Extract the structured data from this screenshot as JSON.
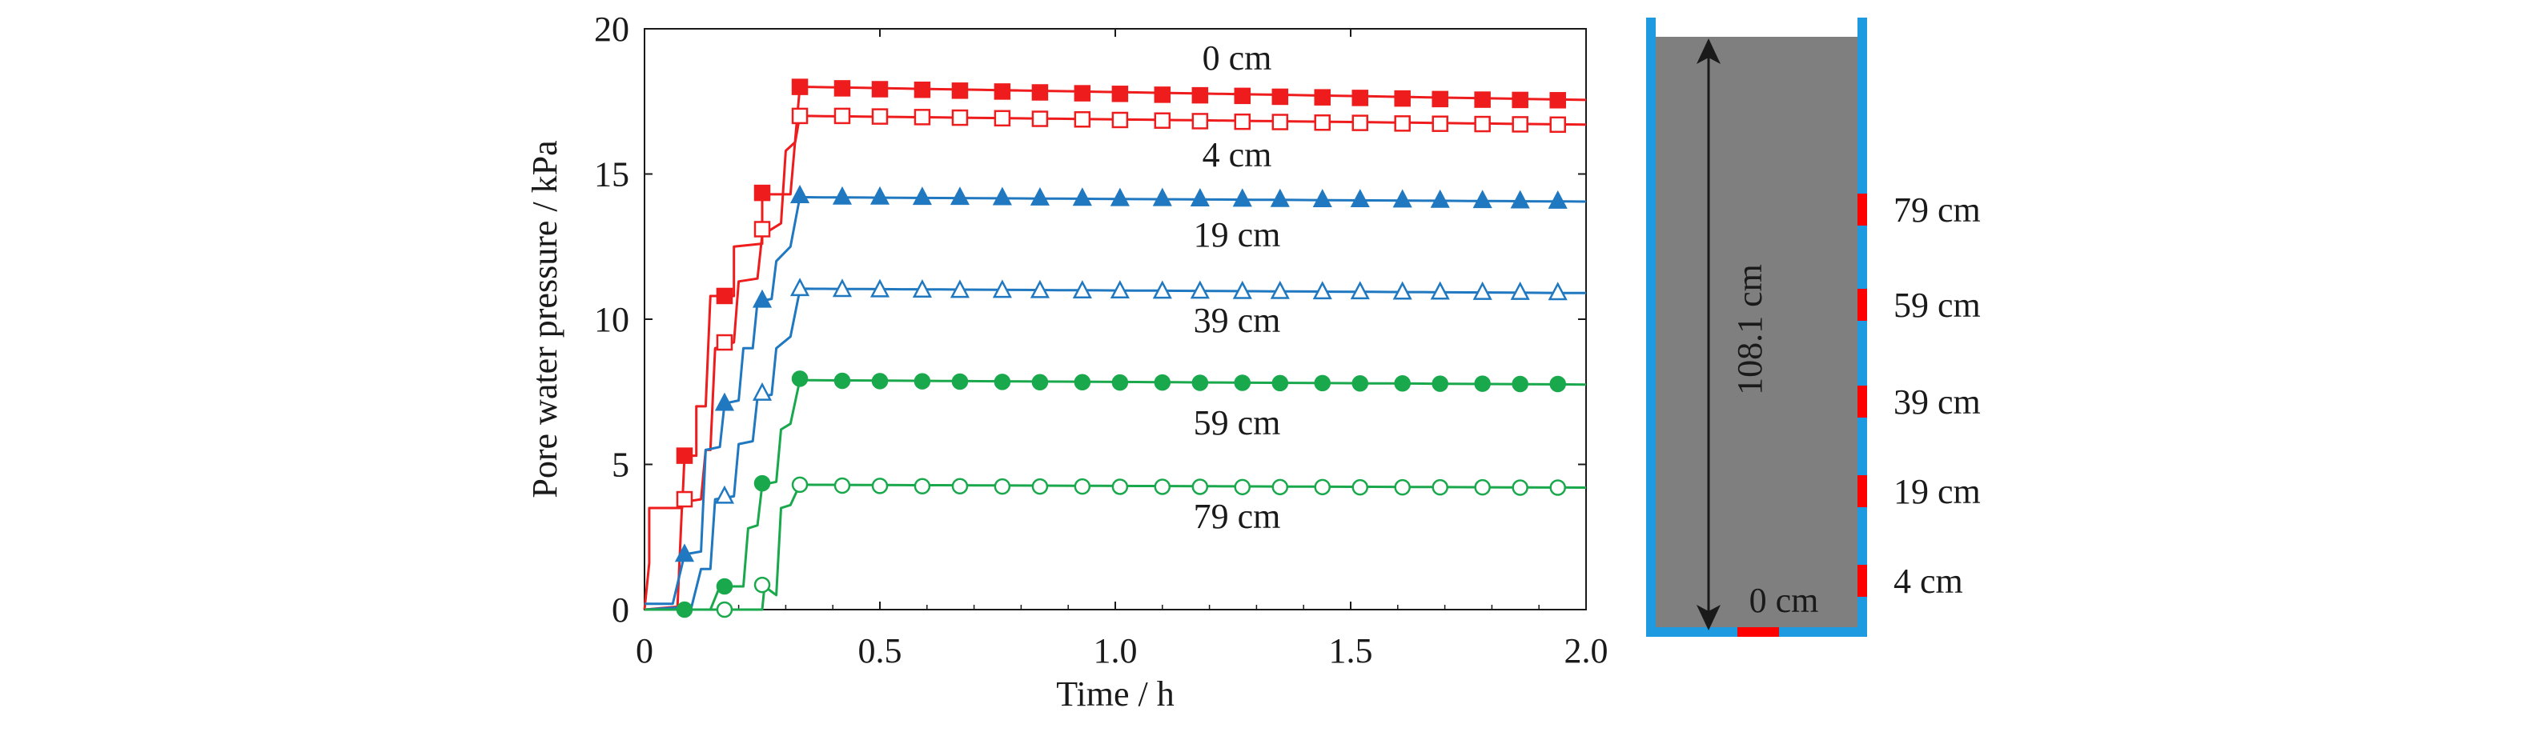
{
  "chart_data": {
    "type": "line",
    "xlabel": "Time / h",
    "ylabel": "Pore water pressure / kPa",
    "xlim": [
      0,
      2.0
    ],
    "ylim": [
      0,
      20
    ],
    "xticks": [
      "0",
      "0.5",
      "1.0",
      "1.5",
      "2.0"
    ],
    "yticks": [
      "0",
      "5",
      "10",
      "15",
      "20"
    ],
    "grid": false,
    "legend": "none (series labeled inline by depth)",
    "series": [
      {
        "name": "0 cm",
        "color": "#ee1c1c",
        "marker": "square-filled",
        "ramp": [
          [
            0,
            0
          ],
          [
            0.01,
            1.6
          ],
          [
            0.01,
            3.5
          ],
          [
            0.08,
            3.5
          ],
          [
            0.085,
            5.3
          ],
          [
            0.11,
            5.3
          ],
          [
            0.11,
            7.0
          ],
          [
            0.13,
            7.0
          ],
          [
            0.14,
            10.8
          ],
          [
            0.19,
            10.8
          ],
          [
            0.19,
            12.5
          ],
          [
            0.25,
            12.6
          ],
          [
            0.25,
            14.3
          ],
          [
            0.31,
            14.3
          ],
          [
            0.33,
            18.0
          ]
        ],
        "plateau": {
          "start": 0.34,
          "end": 2.0,
          "from": 18.0,
          "to": 17.55
        },
        "markers": [
          [
            0.085,
            5.3
          ],
          [
            0.17,
            10.8
          ],
          [
            0.25,
            14.35
          ],
          [
            0.33,
            18.0
          ],
          [
            0.42,
            17.95
          ],
          [
            0.5,
            17.92
          ],
          [
            0.59,
            17.9
          ],
          [
            0.67,
            17.87
          ],
          [
            0.76,
            17.84
          ],
          [
            0.84,
            17.81
          ],
          [
            0.93,
            17.78
          ],
          [
            1.01,
            17.76
          ],
          [
            1.1,
            17.73
          ],
          [
            1.18,
            17.71
          ],
          [
            1.27,
            17.69
          ],
          [
            1.35,
            17.66
          ],
          [
            1.44,
            17.64
          ],
          [
            1.52,
            17.62
          ],
          [
            1.61,
            17.6
          ],
          [
            1.69,
            17.58
          ],
          [
            1.78,
            17.56
          ],
          [
            1.86,
            17.55
          ],
          [
            1.94,
            17.54
          ]
        ]
      },
      {
        "name": "4 cm",
        "color": "#ee1c1c",
        "marker": "square-open",
        "ramp": [
          [
            0,
            0
          ],
          [
            0.07,
            0.1
          ],
          [
            0.08,
            3.7
          ],
          [
            0.12,
            3.8
          ],
          [
            0.13,
            5.5
          ],
          [
            0.14,
            5.5
          ],
          [
            0.15,
            9.0
          ],
          [
            0.19,
            9.2
          ],
          [
            0.2,
            11.3
          ],
          [
            0.24,
            11.4
          ],
          [
            0.25,
            12.9
          ],
          [
            0.29,
            13.3
          ],
          [
            0.3,
            15.8
          ],
          [
            0.32,
            16.1
          ],
          [
            0.33,
            17.0
          ]
        ],
        "plateau": {
          "start": 0.34,
          "end": 2.0,
          "from": 17.0,
          "to": 16.7
        },
        "markers": [
          [
            0.085,
            3.8
          ],
          [
            0.17,
            9.2
          ],
          [
            0.25,
            13.1
          ],
          [
            0.33,
            17.0
          ],
          [
            0.42,
            17.0
          ],
          [
            0.5,
            16.98
          ],
          [
            0.59,
            16.96
          ],
          [
            0.67,
            16.94
          ],
          [
            0.76,
            16.92
          ],
          [
            0.84,
            16.9
          ],
          [
            0.93,
            16.88
          ],
          [
            1.01,
            16.86
          ],
          [
            1.1,
            16.84
          ],
          [
            1.18,
            16.82
          ],
          [
            1.27,
            16.8
          ],
          [
            1.35,
            16.79
          ],
          [
            1.44,
            16.77
          ],
          [
            1.52,
            16.76
          ],
          [
            1.61,
            16.74
          ],
          [
            1.69,
            16.73
          ],
          [
            1.78,
            16.72
          ],
          [
            1.86,
            16.71
          ],
          [
            1.94,
            16.7
          ]
        ]
      },
      {
        "name": "19 cm",
        "color": "#1f78c0",
        "marker": "triangle-filled",
        "ramp": [
          [
            0,
            0.2
          ],
          [
            0.06,
            0.2
          ],
          [
            0.085,
            1.9
          ],
          [
            0.12,
            2.0
          ],
          [
            0.13,
            5.5
          ],
          [
            0.16,
            5.6
          ],
          [
            0.17,
            7.1
          ],
          [
            0.2,
            7.2
          ],
          [
            0.21,
            9.0
          ],
          [
            0.23,
            9.0
          ],
          [
            0.24,
            10.6
          ],
          [
            0.27,
            10.7
          ],
          [
            0.28,
            12.0
          ],
          [
            0.31,
            12.5
          ],
          [
            0.33,
            14.2
          ]
        ],
        "plateau": {
          "start": 0.34,
          "end": 2.0,
          "from": 14.2,
          "to": 14.05
        },
        "markers": [
          [
            0.085,
            1.9
          ],
          [
            0.17,
            7.1
          ],
          [
            0.25,
            10.65
          ],
          [
            0.33,
            14.25
          ],
          [
            0.42,
            14.2
          ],
          [
            0.5,
            14.2
          ],
          [
            0.59,
            14.19
          ],
          [
            0.67,
            14.19
          ],
          [
            0.76,
            14.18
          ],
          [
            0.84,
            14.17
          ],
          [
            0.93,
            14.16
          ],
          [
            1.01,
            14.15
          ],
          [
            1.1,
            14.15
          ],
          [
            1.18,
            14.14
          ],
          [
            1.27,
            14.13
          ],
          [
            1.35,
            14.12
          ],
          [
            1.44,
            14.11
          ],
          [
            1.52,
            14.11
          ],
          [
            1.61,
            14.1
          ],
          [
            1.69,
            14.09
          ],
          [
            1.78,
            14.08
          ],
          [
            1.86,
            14.07
          ],
          [
            1.94,
            14.06
          ]
        ]
      },
      {
        "name": "39 cm",
        "color": "#1f78c0",
        "marker": "triangle-open",
        "ramp": [
          [
            0,
            0
          ],
          [
            0.1,
            0.1
          ],
          [
            0.12,
            1.4
          ],
          [
            0.14,
            1.4
          ],
          [
            0.15,
            3.8
          ],
          [
            0.19,
            3.9
          ],
          [
            0.2,
            5.7
          ],
          [
            0.23,
            5.8
          ],
          [
            0.24,
            7.3
          ],
          [
            0.27,
            7.4
          ],
          [
            0.28,
            9.0
          ],
          [
            0.31,
            9.4
          ],
          [
            0.33,
            11.0
          ]
        ],
        "plateau": {
          "start": 0.34,
          "end": 2.0,
          "from": 11.05,
          "to": 10.9
        },
        "markers": [
          [
            0.17,
            3.9
          ],
          [
            0.25,
            7.45
          ],
          [
            0.33,
            11.05
          ],
          [
            0.42,
            11.02
          ],
          [
            0.5,
            11.01
          ],
          [
            0.59,
            11.0
          ],
          [
            0.67,
            10.99
          ],
          [
            0.76,
            10.99
          ],
          [
            0.84,
            10.98
          ],
          [
            0.93,
            10.97
          ],
          [
            1.01,
            10.97
          ],
          [
            1.1,
            10.96
          ],
          [
            1.18,
            10.96
          ],
          [
            1.27,
            10.95
          ],
          [
            1.35,
            10.95
          ],
          [
            1.44,
            10.94
          ],
          [
            1.52,
            10.94
          ],
          [
            1.61,
            10.93
          ],
          [
            1.69,
            10.93
          ],
          [
            1.78,
            10.92
          ],
          [
            1.86,
            10.92
          ],
          [
            1.94,
            10.91
          ]
        ]
      },
      {
        "name": "59 cm",
        "color": "#1aa84c",
        "marker": "circle-filled",
        "ramp": [
          [
            0,
            0
          ],
          [
            0.14,
            0
          ],
          [
            0.16,
            0.8
          ],
          [
            0.21,
            0.8
          ],
          [
            0.22,
            2.8
          ],
          [
            0.24,
            2.9
          ],
          [
            0.25,
            4.3
          ],
          [
            0.28,
            4.4
          ],
          [
            0.29,
            6.2
          ],
          [
            0.31,
            6.4
          ],
          [
            0.33,
            7.9
          ]
        ],
        "plateau": {
          "start": 0.34,
          "end": 2.0,
          "from": 7.9,
          "to": 7.75
        },
        "markers": [
          [
            0.085,
            0
          ],
          [
            0.17,
            0.8
          ],
          [
            0.25,
            4.35
          ],
          [
            0.33,
            7.95
          ],
          [
            0.42,
            7.88
          ],
          [
            0.5,
            7.87
          ],
          [
            0.59,
            7.86
          ],
          [
            0.67,
            7.85
          ],
          [
            0.76,
            7.84
          ],
          [
            0.84,
            7.83
          ],
          [
            0.93,
            7.83
          ],
          [
            1.01,
            7.82
          ],
          [
            1.1,
            7.82
          ],
          [
            1.18,
            7.81
          ],
          [
            1.27,
            7.81
          ],
          [
            1.35,
            7.8
          ],
          [
            1.44,
            7.8
          ],
          [
            1.52,
            7.79
          ],
          [
            1.61,
            7.79
          ],
          [
            1.69,
            7.78
          ],
          [
            1.78,
            7.78
          ],
          [
            1.86,
            7.77
          ],
          [
            1.94,
            7.77
          ]
        ]
      },
      {
        "name": "79 cm",
        "color": "#1aa84c",
        "marker": "circle-open",
        "ramp": [
          [
            0,
            0
          ],
          [
            0.25,
            0
          ],
          [
            0.255,
            0.8
          ],
          [
            0.28,
            0.5
          ],
          [
            0.29,
            3.5
          ],
          [
            0.31,
            3.6
          ],
          [
            0.33,
            4.3
          ]
        ],
        "plateau": {
          "start": 0.34,
          "end": 2.0,
          "from": 4.3,
          "to": 4.2
        },
        "markers": [
          [
            0.17,
            0
          ],
          [
            0.25,
            0.85
          ],
          [
            0.33,
            4.3
          ],
          [
            0.42,
            4.27
          ],
          [
            0.5,
            4.26
          ],
          [
            0.59,
            4.25
          ],
          [
            0.67,
            4.25
          ],
          [
            0.76,
            4.24
          ],
          [
            0.84,
            4.24
          ],
          [
            0.93,
            4.24
          ],
          [
            1.01,
            4.23
          ],
          [
            1.1,
            4.23
          ],
          [
            1.18,
            4.23
          ],
          [
            1.27,
            4.22
          ],
          [
            1.35,
            4.22
          ],
          [
            1.44,
            4.22
          ],
          [
            1.52,
            4.21
          ],
          [
            1.61,
            4.21
          ],
          [
            1.69,
            4.21
          ],
          [
            1.78,
            4.21
          ],
          [
            1.86,
            4.2
          ],
          [
            1.94,
            4.2
          ]
        ]
      }
    ]
  },
  "column": {
    "height_label": "108.1 cm",
    "fill_color": "#7f7f7f",
    "wall_color": "#1e9be0",
    "sensor_color": "#ff0000",
    "sensors": [
      "79 cm",
      "59 cm",
      "39 cm",
      "19 cm",
      "4 cm",
      "0 cm"
    ]
  }
}
